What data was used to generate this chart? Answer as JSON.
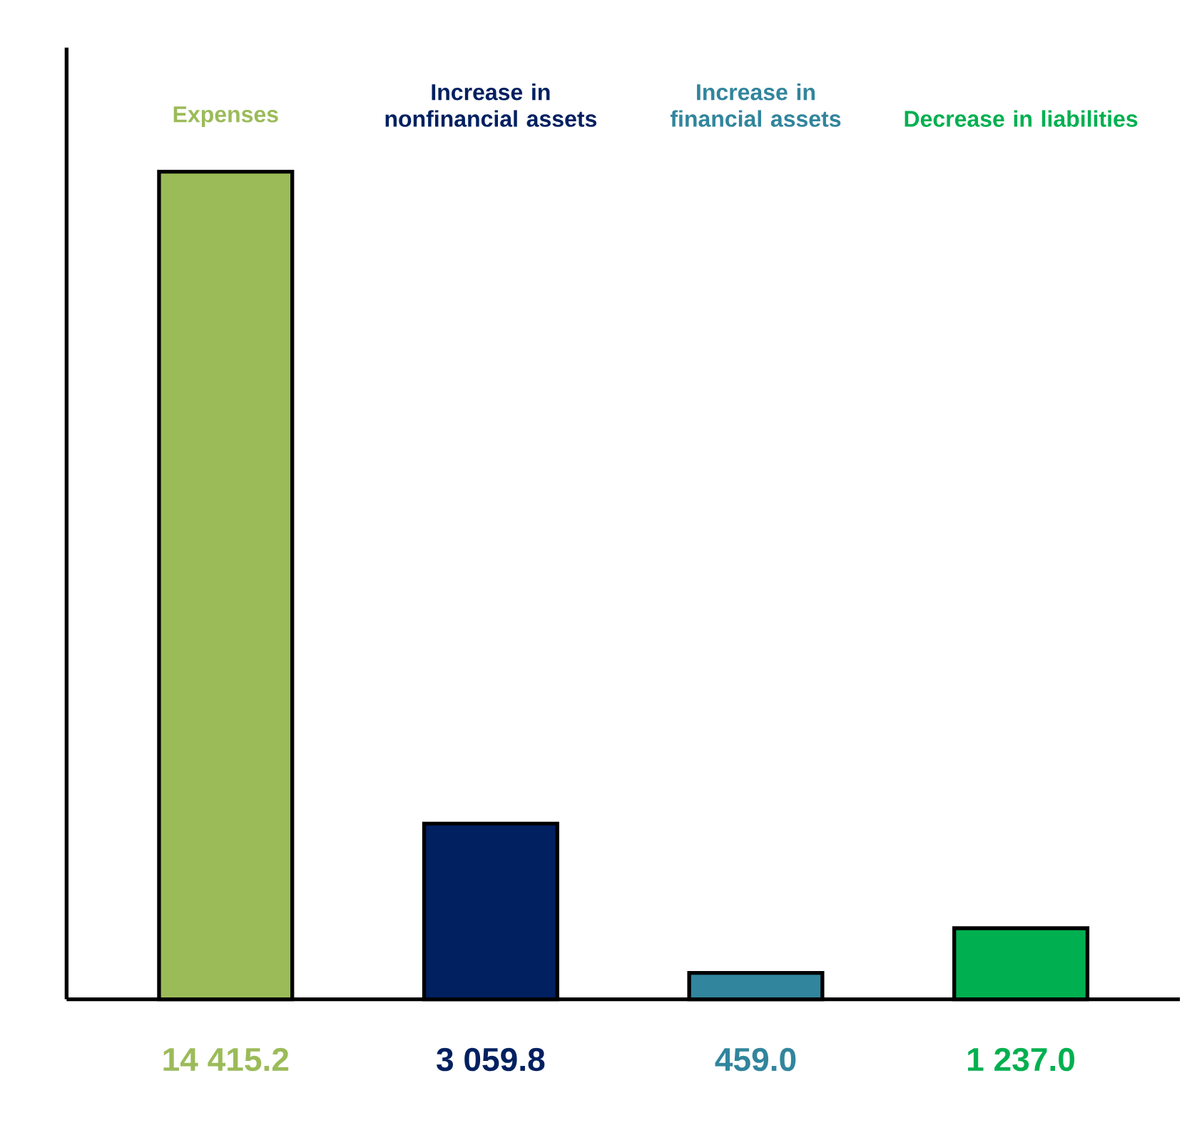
{
  "chart_data": {
    "type": "bar",
    "categories": [
      "Expenses",
      "Increase in nonfinancial assets",
      "Increase in financial assets",
      "Decrease in liabilities"
    ],
    "values": [
      14415.2,
      3059.8,
      459.0,
      1237.0
    ],
    "colors": [
      "#9bbb59",
      "#002060",
      "#31859c",
      "#00b050"
    ],
    "value_labels": [
      "14 415.2",
      "3 059.8",
      "459.0",
      "1 237.0"
    ]
  }
}
